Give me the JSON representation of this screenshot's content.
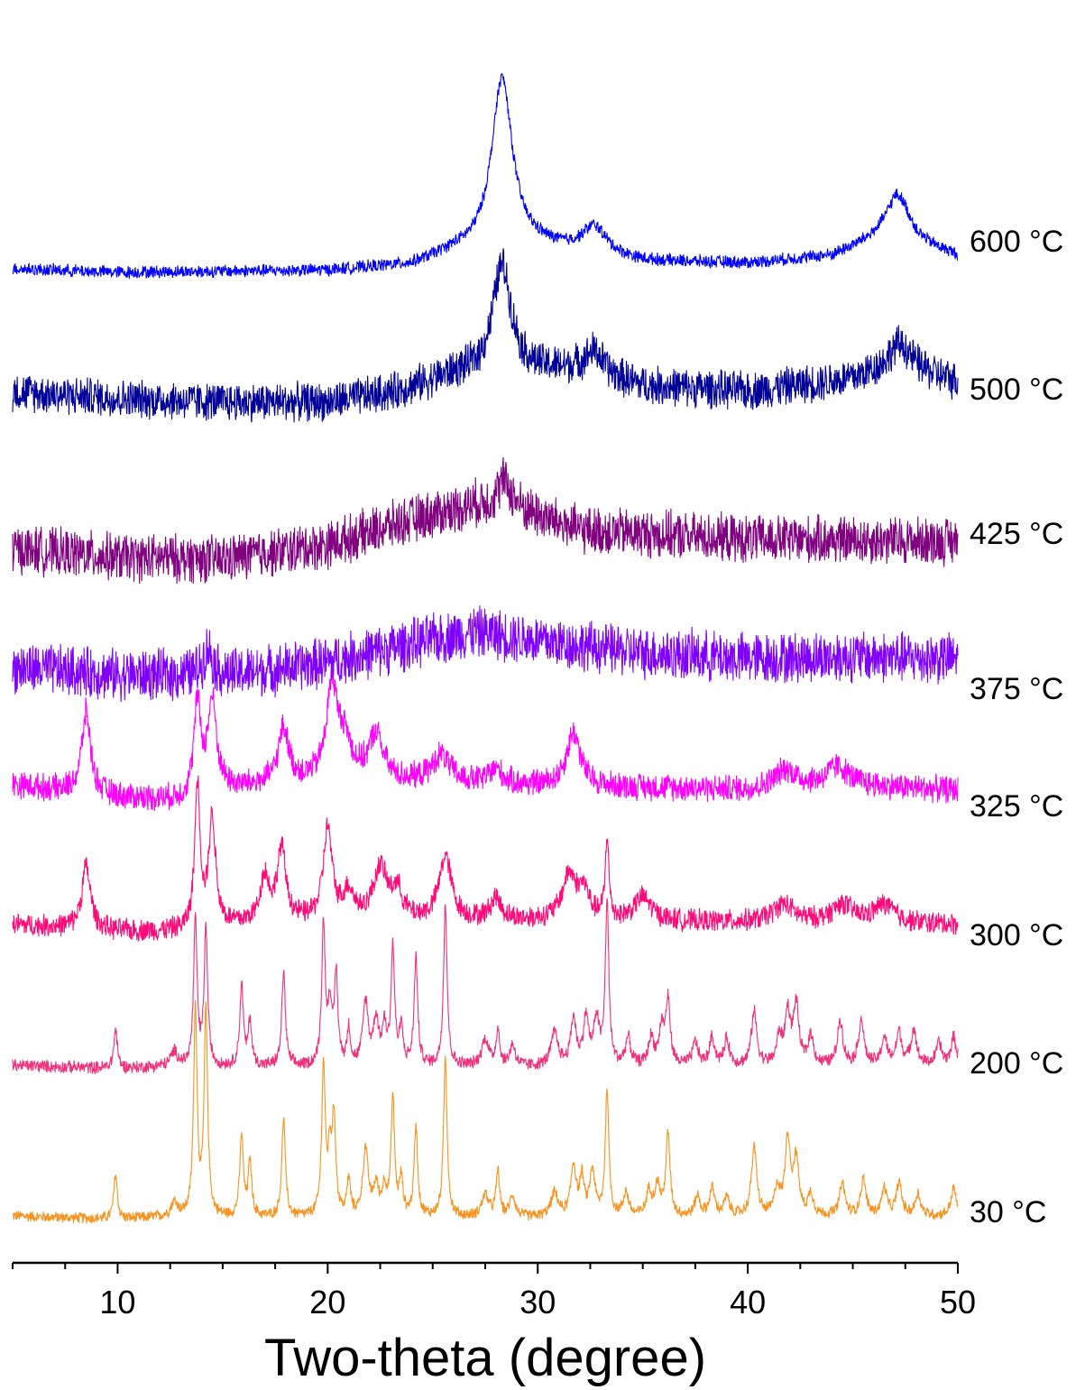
{
  "chart_data": {
    "type": "line",
    "title": "",
    "xlabel": "Two-theta (degree)",
    "ylabel": "",
    "xlim": [
      5,
      50
    ],
    "x_ticks": [
      10,
      20,
      30,
      40,
      50
    ],
    "x_minor_step": 2.5,
    "y_axis_visible": false,
    "grid": false,
    "legend": "labels at right end of each trace",
    "series": [
      {
        "name": "30 °C",
        "color": "#f7931e",
        "noise": 0.35,
        "baseline": [
          [
            5,
            0.6
          ],
          [
            10,
            0.4
          ],
          [
            12,
            0.5
          ],
          [
            20,
            0.5
          ],
          [
            30,
            0.5
          ],
          [
            50,
            0.6
          ]
        ],
        "peaks": [
          [
            9.9,
            2.5,
            0.1
          ],
          [
            12.7,
            0.8,
            0.2
          ],
          [
            13.7,
            11.5,
            0.1
          ],
          [
            14.2,
            11.3,
            0.1
          ],
          [
            15.9,
            4.5,
            0.1
          ],
          [
            16.3,
            3.0,
            0.1
          ],
          [
            17.9,
            5.5,
            0.1
          ],
          [
            19.8,
            8.3,
            0.1
          ],
          [
            20.1,
            3.2,
            0.1
          ],
          [
            20.3,
            5.3,
            0.1
          ],
          [
            21.0,
            2.0,
            0.1
          ],
          [
            21.8,
            3.7,
            0.15
          ],
          [
            22.3,
            1.6,
            0.15
          ],
          [
            22.7,
            1.5,
            0.12
          ],
          [
            23.1,
            6.5,
            0.1
          ],
          [
            23.5,
            2.0,
            0.1
          ],
          [
            24.2,
            5.0,
            0.1
          ],
          [
            25.6,
            8.8,
            0.1
          ],
          [
            27.5,
            1.2,
            0.2
          ],
          [
            28.1,
            2.5,
            0.1
          ],
          [
            28.8,
            1.2,
            0.15
          ],
          [
            30.8,
            1.3,
            0.2
          ],
          [
            31.7,
            2.8,
            0.15
          ],
          [
            32.1,
            2.0,
            0.12
          ],
          [
            32.6,
            2.5,
            0.15
          ],
          [
            33.3,
            7.0,
            0.1
          ],
          [
            34.2,
            1.3,
            0.15
          ],
          [
            35.3,
            1.4,
            0.15
          ],
          [
            35.7,
            1.6,
            0.15
          ],
          [
            36.2,
            4.5,
            0.12
          ],
          [
            37.6,
            1.1,
            0.15
          ],
          [
            38.3,
            1.5,
            0.15
          ],
          [
            39.0,
            1.0,
            0.15
          ],
          [
            40.3,
            3.8,
            0.15
          ],
          [
            41.4,
            1.5,
            0.15
          ],
          [
            41.9,
            4.2,
            0.15
          ],
          [
            42.3,
            3.0,
            0.15
          ],
          [
            43.0,
            1.2,
            0.15
          ],
          [
            44.5,
            1.8,
            0.15
          ],
          [
            45.5,
            2.0,
            0.15
          ],
          [
            46.5,
            1.5,
            0.15
          ],
          [
            47.2,
            1.8,
            0.15
          ],
          [
            48.1,
            1.2,
            0.15
          ],
          [
            49.8,
            1.5,
            0.15
          ]
        ]
      },
      {
        "name": "200 °C",
        "color": "#f0307a",
        "noise": 0.4,
        "baseline": [
          [
            5,
            0.7
          ],
          [
            10,
            0.5
          ],
          [
            12,
            0.6
          ],
          [
            20,
            0.6
          ],
          [
            30,
            0.6
          ],
          [
            50,
            0.7
          ]
        ],
        "peaks": [
          [
            9.9,
            2.2,
            0.1
          ],
          [
            12.7,
            0.8,
            0.2
          ],
          [
            13.7,
            8.0,
            0.1
          ],
          [
            14.2,
            7.5,
            0.1
          ],
          [
            15.9,
            4.5,
            0.1
          ],
          [
            16.3,
            2.5,
            0.1
          ],
          [
            17.9,
            5.3,
            0.1
          ],
          [
            19.8,
            7.8,
            0.1
          ],
          [
            20.1,
            3.2,
            0.1
          ],
          [
            20.4,
            5.0,
            0.1
          ],
          [
            21.0,
            2.0,
            0.1
          ],
          [
            21.8,
            3.5,
            0.15
          ],
          [
            22.3,
            2.5,
            0.15
          ],
          [
            22.7,
            2.0,
            0.12
          ],
          [
            23.1,
            6.5,
            0.1
          ],
          [
            23.5,
            2.0,
            0.1
          ],
          [
            24.2,
            6.0,
            0.1
          ],
          [
            25.6,
            9.0,
            0.1
          ],
          [
            27.5,
            1.5,
            0.2
          ],
          [
            28.1,
            2.0,
            0.1
          ],
          [
            28.8,
            1.2,
            0.15
          ],
          [
            30.8,
            1.8,
            0.2
          ],
          [
            31.7,
            2.6,
            0.15
          ],
          [
            32.3,
            2.6,
            0.15
          ],
          [
            32.8,
            2.5,
            0.15
          ],
          [
            33.3,
            9.0,
            0.1
          ],
          [
            34.3,
            1.5,
            0.15
          ],
          [
            35.4,
            1.5,
            0.15
          ],
          [
            35.9,
            2.0,
            0.15
          ],
          [
            36.2,
            3.5,
            0.12
          ],
          [
            37.5,
            1.3,
            0.15
          ],
          [
            38.3,
            1.5,
            0.15
          ],
          [
            39.0,
            1.4,
            0.15
          ],
          [
            40.3,
            3.0,
            0.15
          ],
          [
            41.5,
            1.5,
            0.15
          ],
          [
            41.9,
            2.8,
            0.15
          ],
          [
            42.3,
            3.3,
            0.15
          ],
          [
            43.0,
            1.6,
            0.15
          ],
          [
            44.4,
            2.5,
            0.15
          ],
          [
            45.4,
            2.5,
            0.15
          ],
          [
            46.5,
            1.5,
            0.15
          ],
          [
            47.2,
            1.8,
            0.15
          ],
          [
            47.9,
            2.0,
            0.15
          ],
          [
            49.1,
            1.2,
            0.15
          ],
          [
            49.8,
            1.5,
            0.15
          ]
        ]
      },
      {
        "name": "300 °C",
        "color": "#ff0a78",
        "noise": 0.7,
        "baseline": [
          [
            5,
            1.0
          ],
          [
            10,
            0.6
          ],
          [
            13,
            0.6
          ],
          [
            16,
            1.0
          ],
          [
            20,
            1.2
          ],
          [
            30,
            1.2
          ],
          [
            40,
            1.1
          ],
          [
            50,
            1.0
          ]
        ],
        "peaks": [
          [
            8.5,
            3.5,
            0.25
          ],
          [
            13.8,
            8.0,
            0.15
          ],
          [
            14.5,
            6.0,
            0.2
          ],
          [
            17.0,
            2.5,
            0.25
          ],
          [
            17.8,
            4.0,
            0.25
          ],
          [
            20.0,
            5.0,
            0.25
          ],
          [
            21.0,
            1.5,
            0.3
          ],
          [
            22.5,
            2.8,
            0.4
          ],
          [
            23.3,
            1.5,
            0.3
          ],
          [
            25.6,
            3.5,
            0.35
          ],
          [
            28.0,
            1.2,
            0.3
          ],
          [
            31.5,
            2.5,
            0.4
          ],
          [
            32.2,
            1.5,
            0.3
          ],
          [
            33.3,
            4.5,
            0.1
          ],
          [
            35.0,
            1.3,
            0.5
          ],
          [
            41.7,
            1.0,
            0.6
          ],
          [
            44.5,
            1.0,
            0.6
          ],
          [
            46.5,
            1.0,
            0.6
          ]
        ]
      },
      {
        "name": "325 °C",
        "color": "#ff00ff",
        "noise": 0.85,
        "baseline": [
          [
            5,
            1.5
          ],
          [
            10,
            0.8
          ],
          [
            13,
            0.6
          ],
          [
            15,
            1.2
          ],
          [
            20,
            1.8
          ],
          [
            25,
            1.6
          ],
          [
            30,
            1.4
          ],
          [
            37,
            1.3
          ],
          [
            40,
            1.2
          ],
          [
            44,
            1.5
          ],
          [
            50,
            1.2
          ]
        ],
        "peaks": [
          [
            8.5,
            4.5,
            0.25
          ],
          [
            13.8,
            5.0,
            0.2
          ],
          [
            14.5,
            5.0,
            0.25
          ],
          [
            17.9,
            3.0,
            0.3
          ],
          [
            20.2,
            5.0,
            0.3
          ],
          [
            20.8,
            2.0,
            0.4
          ],
          [
            22.3,
            2.5,
            0.4
          ],
          [
            25.4,
            1.5,
            0.5
          ],
          [
            28.0,
            0.8,
            0.4
          ],
          [
            31.7,
            3.0,
            0.4
          ],
          [
            41.8,
            1.0,
            0.6
          ],
          [
            44.3,
            1.0,
            0.6
          ]
        ]
      },
      {
        "name": "375 °C",
        "color": "#8000ff",
        "noise": 1.6,
        "baseline": [
          [
            5,
            1.5
          ],
          [
            10,
            1.1
          ],
          [
            15,
            1.0
          ],
          [
            20,
            1.8
          ],
          [
            24,
            2.8
          ],
          [
            27,
            3.5
          ],
          [
            30,
            3.0
          ],
          [
            35,
            2.3
          ],
          [
            40,
            2.0
          ],
          [
            45,
            2.1
          ],
          [
            50,
            2.0
          ]
        ],
        "peaks": [
          [
            14.3,
            1.5,
            0.3
          ]
        ]
      },
      {
        "name": "425 °C",
        "color": "#800080",
        "noise": 1.5,
        "baseline": [
          [
            5,
            1.6
          ],
          [
            10,
            1.1
          ],
          [
            15,
            1.0
          ],
          [
            20,
            1.8
          ],
          [
            24,
            3.2
          ],
          [
            27,
            4.0
          ],
          [
            29,
            3.8
          ],
          [
            32,
            2.6
          ],
          [
            40,
            2.1
          ],
          [
            50,
            2.0
          ]
        ],
        "peaks": [
          [
            28.4,
            1.5,
            0.4
          ]
        ]
      },
      {
        "name": "500 °C",
        "color": "#000099",
        "noise": 1.2,
        "baseline": [
          [
            5,
            1.3
          ],
          [
            10,
            0.9
          ],
          [
            15,
            0.7
          ],
          [
            20,
            0.7
          ],
          [
            23,
            1.2
          ],
          [
            26,
            2.2
          ],
          [
            32,
            2.5
          ],
          [
            35,
            1.6
          ],
          [
            40,
            1.3
          ],
          [
            45,
            2.0
          ],
          [
            47,
            2.8
          ],
          [
            50,
            1.8
          ]
        ],
        "peaks": [
          [
            28.3,
            6.0,
            0.55
          ],
          [
            32.7,
            1.2,
            0.5
          ],
          [
            47.3,
            1.2,
            0.6
          ]
        ]
      },
      {
        "name": "600 °C",
        "color": "#0000ff",
        "noise": 0.4,
        "baseline": [
          [
            5,
            0.6
          ],
          [
            10,
            0.4
          ],
          [
            20,
            0.5
          ],
          [
            24,
            0.8
          ],
          [
            26,
            1.5
          ],
          [
            30,
            1.8
          ],
          [
            35,
            1.0
          ],
          [
            40,
            0.9
          ],
          [
            44,
            1.3
          ],
          [
            46,
            2.2
          ],
          [
            47,
            2.8
          ],
          [
            48,
            2.0
          ],
          [
            50,
            1.3
          ]
        ],
        "peaks": [
          [
            28.3,
            9.5,
            0.6
          ],
          [
            32.7,
            1.5,
            0.7
          ],
          [
            47.2,
            2.0,
            0.7
          ]
        ]
      }
    ]
  }
}
